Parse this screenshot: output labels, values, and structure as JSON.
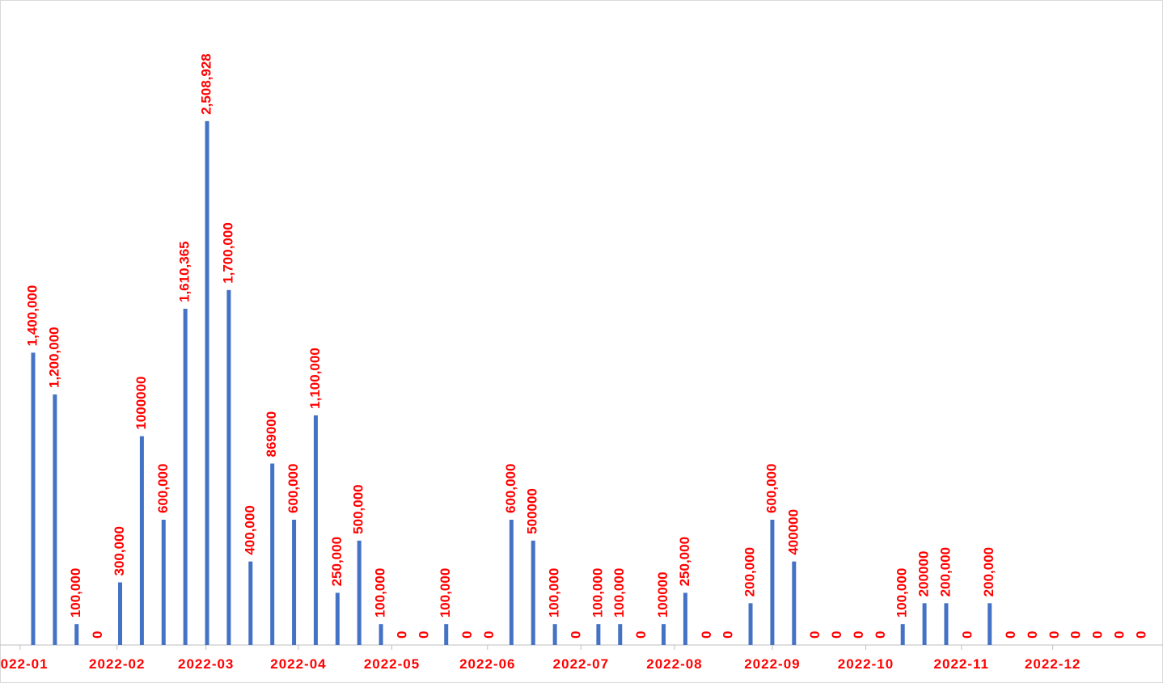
{
  "chart_data": {
    "type": "bar",
    "categories": [
      null,
      null,
      null,
      null,
      null,
      null,
      null,
      null,
      null,
      null,
      null,
      null,
      null,
      null,
      null,
      null,
      null,
      null,
      null,
      null,
      null,
      null,
      null,
      null,
      null,
      null,
      null,
      null,
      null,
      null,
      null,
      null,
      null,
      null,
      null,
      null,
      null,
      null,
      null,
      null,
      null,
      null,
      null,
      null,
      null,
      null,
      null,
      null,
      null,
      null,
      null,
      null
    ],
    "values": [
      1400000,
      1200000,
      100000,
      0,
      300000,
      1000000,
      600000,
      1610365,
      2508928,
      1700000,
      400000,
      869000,
      600000,
      1100000,
      250000,
      500000,
      100000,
      0,
      0,
      100000,
      0,
      0,
      600000,
      500000,
      100000,
      0,
      100000,
      100000,
      0,
      100000,
      250000,
      0,
      0,
      200000,
      600000,
      400000,
      0,
      0,
      0,
      0,
      100000,
      200000,
      200000,
      0,
      200000,
      0,
      0,
      0,
      0,
      0,
      0,
      0
    ],
    "value_labels": [
      "1,400,000",
      "1,200,000",
      "100,000",
      "0",
      "300,000",
      "1000000",
      "600,000",
      "1,610,365",
      "2,508,928",
      "1,700,000",
      "400,000",
      "869000",
      "600,000",
      "1,100,000",
      "250,000",
      "500,000",
      "100,000",
      "0",
      "0",
      "100,000",
      "0",
      "0",
      "600,000",
      "500000",
      "100,000",
      "0",
      "100,000",
      "100,000",
      "0",
      "100000",
      "250,000",
      "0",
      "0",
      "200,000",
      "600,000",
      "400000",
      "0",
      "0",
      "0",
      "0",
      "100,000",
      "200000",
      "200,000",
      "0",
      "200,000",
      "0",
      "0",
      "0",
      "0",
      "0",
      "0",
      "0"
    ],
    "color": "#4472c4",
    "label_color": "#ff0000",
    "ylim": [
      0,
      3000000
    ],
    "xticks": [
      {
        "value": -0.6,
        "label": "2022-01"
      },
      {
        "value": 3.86,
        "label": "2022-02"
      },
      {
        "value": 7.95,
        "label": "2022-03"
      },
      {
        "value": 12.2,
        "label": "2022-04"
      },
      {
        "value": 16.5,
        "label": "2022-05"
      },
      {
        "value": 20.9,
        "label": "2022-06"
      },
      {
        "value": 25.2,
        "label": "2022-07"
      },
      {
        "value": 29.5,
        "label": "2022-08"
      },
      {
        "value": 34.0,
        "label": "2022-09"
      },
      {
        "value": 38.3,
        "label": "2022-10"
      },
      {
        "value": 42.7,
        "label": "2022-11"
      },
      {
        "value": 46.9,
        "label": "2022-12"
      }
    ]
  }
}
